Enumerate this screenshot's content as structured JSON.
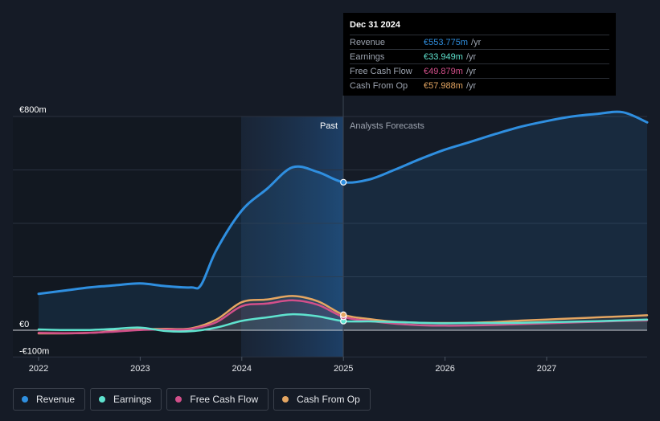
{
  "chart_data": {
    "type": "line",
    "title": "",
    "xlabel": "",
    "ylabel": "",
    "ylim": [
      -100,
      800
    ],
    "x_ticks": [
      "2022",
      "2023",
      "2024",
      "2025",
      "2026",
      "2027"
    ],
    "y_tick_labels": [
      {
        "value": 800,
        "label": "€800m"
      },
      {
        "value": 0,
        "label": "€0"
      },
      {
        "value": -100,
        "label": "-€100m"
      }
    ],
    "past_label": "Past",
    "forecast_label": "Analysts Forecasts",
    "series": [
      {
        "name": "Revenue",
        "color": "#2f8fe0",
        "points": [
          [
            2022.0,
            136
          ],
          [
            2022.25,
            148
          ],
          [
            2022.5,
            160
          ],
          [
            2022.75,
            168
          ],
          [
            2023.0,
            175
          ],
          [
            2023.25,
            165
          ],
          [
            2023.5,
            160
          ],
          [
            2023.6,
            170
          ],
          [
            2023.75,
            300
          ],
          [
            2024.0,
            448
          ],
          [
            2024.25,
            530
          ],
          [
            2024.5,
            610
          ],
          [
            2024.75,
            592
          ],
          [
            2025.0,
            554
          ],
          [
            2025.25,
            564
          ],
          [
            2025.5,
            600
          ],
          [
            2025.75,
            640
          ],
          [
            2026.0,
            676
          ],
          [
            2026.25,
            705
          ],
          [
            2026.5,
            735
          ],
          [
            2026.75,
            762
          ],
          [
            2027.0,
            783
          ],
          [
            2027.25,
            800
          ],
          [
            2027.5,
            810
          ],
          [
            2027.75,
            816
          ],
          [
            2028.0,
            778
          ]
        ]
      },
      {
        "name": "Earnings",
        "color": "#5fe3cf",
        "points": [
          [
            2022.0,
            3
          ],
          [
            2022.25,
            1
          ],
          [
            2022.5,
            1
          ],
          [
            2022.75,
            5
          ],
          [
            2023.0,
            10
          ],
          [
            2023.25,
            -3
          ],
          [
            2023.5,
            -4
          ],
          [
            2023.75,
            10
          ],
          [
            2024.0,
            35
          ],
          [
            2024.25,
            48
          ],
          [
            2024.5,
            60
          ],
          [
            2024.75,
            52
          ],
          [
            2025.0,
            34
          ],
          [
            2025.25,
            33
          ],
          [
            2025.5,
            31
          ],
          [
            2025.75,
            28
          ],
          [
            2026.0,
            26
          ],
          [
            2026.25,
            27
          ],
          [
            2026.5,
            27
          ],
          [
            2026.75,
            28
          ],
          [
            2027.0,
            30
          ],
          [
            2027.25,
            32
          ],
          [
            2027.5,
            34
          ],
          [
            2027.75,
            37
          ],
          [
            2028.0,
            40
          ]
        ]
      },
      {
        "name": "Free Cash Flow",
        "color": "#d24f8a",
        "points": [
          [
            2022.0,
            -10
          ],
          [
            2022.25,
            -11
          ],
          [
            2022.5,
            -10
          ],
          [
            2022.75,
            -5
          ],
          [
            2023.0,
            1
          ],
          [
            2023.25,
            3
          ],
          [
            2023.5,
            5
          ],
          [
            2023.75,
            30
          ],
          [
            2024.0,
            90
          ],
          [
            2024.25,
            100
          ],
          [
            2024.5,
            112
          ],
          [
            2024.75,
            95
          ],
          [
            2025.0,
            50
          ],
          [
            2025.25,
            35
          ],
          [
            2025.5,
            25
          ],
          [
            2025.75,
            19
          ],
          [
            2026.0,
            17
          ],
          [
            2026.25,
            18
          ],
          [
            2026.5,
            20
          ],
          [
            2026.75,
            23
          ],
          [
            2027.0,
            26
          ],
          [
            2027.25,
            29
          ],
          [
            2027.5,
            32
          ],
          [
            2027.75,
            35
          ],
          [
            2028.0,
            37
          ]
        ]
      },
      {
        "name": "Cash From Op",
        "color": "#e5a662",
        "points": [
          [
            2022.0,
            -12
          ],
          [
            2022.25,
            -12
          ],
          [
            2022.5,
            -10
          ],
          [
            2022.75,
            -4
          ],
          [
            2023.0,
            3
          ],
          [
            2023.25,
            5
          ],
          [
            2023.5,
            7
          ],
          [
            2023.75,
            40
          ],
          [
            2024.0,
            105
          ],
          [
            2024.25,
            115
          ],
          [
            2024.5,
            128
          ],
          [
            2024.75,
            108
          ],
          [
            2025.0,
            58
          ],
          [
            2025.25,
            42
          ],
          [
            2025.5,
            32
          ],
          [
            2025.75,
            28
          ],
          [
            2026.0,
            27
          ],
          [
            2026.25,
            28
          ],
          [
            2026.5,
            31
          ],
          [
            2026.75,
            36
          ],
          [
            2027.0,
            40
          ],
          [
            2027.25,
            44
          ],
          [
            2027.5,
            48
          ],
          [
            2027.75,
            52
          ],
          [
            2028.0,
            56
          ]
        ]
      }
    ]
  },
  "tooltip": {
    "date": "Dec 31 2024",
    "rows": [
      {
        "name": "Revenue",
        "value": "€553.775m",
        "unit": "/yr",
        "color": "#2f8fe0"
      },
      {
        "name": "Earnings",
        "value": "€33.949m",
        "unit": "/yr",
        "color": "#5fe3cf"
      },
      {
        "name": "Free Cash Flow",
        "value": "€49.879m",
        "unit": "/yr",
        "color": "#d24f8a"
      },
      {
        "name": "Cash From Op",
        "value": "€57.988m",
        "unit": "/yr",
        "color": "#e5a662"
      }
    ]
  },
  "legend": [
    {
      "label": "Revenue",
      "color": "#2f8fe0"
    },
    {
      "label": "Earnings",
      "color": "#5fe3cf"
    },
    {
      "label": "Free Cash Flow",
      "color": "#d24f8a"
    },
    {
      "label": "Cash From Op",
      "color": "#e5a662"
    }
  ]
}
